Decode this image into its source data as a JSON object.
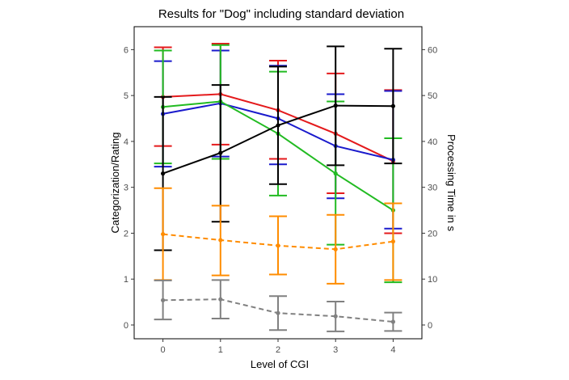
{
  "chart_data": {
    "type": "line",
    "title": "Results for \"Dog\" including standard deviation",
    "xlabel": "Level of CGI",
    "ylabel_left": "Categorization/Rating",
    "ylabel_right": "Processing Time in s",
    "x": [
      0,
      1,
      2,
      3,
      4
    ],
    "x_ticks": [
      "0",
      "1",
      "2",
      "3",
      "4"
    ],
    "xlim": [
      -0.5,
      4.5
    ],
    "ylim_left": [
      -0.3,
      6.5
    ],
    "ylim_right": [
      -3,
      65
    ],
    "y_ticks_left": [
      "0",
      "1",
      "2",
      "3",
      "4",
      "5",
      "6"
    ],
    "y_ticks_right": [
      "0",
      "10",
      "20",
      "30",
      "40",
      "50",
      "60"
    ],
    "grid": false,
    "legend": "none",
    "series": [
      {
        "color": "#e41a1c",
        "dash": false,
        "axis": "left",
        "values": [
          4.97,
          5.03,
          4.68,
          4.17,
          3.57
        ],
        "lower": [
          3.9,
          3.93,
          3.62,
          2.87,
          2.0
        ],
        "upper": [
          6.05,
          6.13,
          5.76,
          5.48,
          5.12
        ]
      },
      {
        "color": "#1a1acc",
        "dash": false,
        "axis": "left",
        "values": [
          4.6,
          4.83,
          4.5,
          3.9,
          3.6
        ],
        "lower": [
          3.45,
          3.67,
          3.5,
          2.76,
          2.1
        ],
        "upper": [
          5.75,
          5.98,
          5.65,
          5.03,
          5.1
        ]
      },
      {
        "color": "#22bb22",
        "dash": false,
        "axis": "left",
        "values": [
          4.75,
          4.87,
          4.17,
          3.3,
          2.5
        ],
        "lower": [
          3.52,
          3.62,
          2.82,
          1.75,
          0.93
        ],
        "upper": [
          5.98,
          6.1,
          5.52,
          4.87,
          4.07
        ]
      },
      {
        "color": "#000000",
        "dash": false,
        "axis": "left",
        "values": [
          3.3,
          3.75,
          4.35,
          4.78,
          4.77
        ],
        "lower": [
          1.63,
          2.25,
          3.07,
          3.48,
          3.52
        ],
        "upper": [
          4.97,
          5.23,
          5.63,
          6.07,
          6.02
        ]
      },
      {
        "color": "#ff8c00",
        "dash": true,
        "axis": "left",
        "values": [
          1.98,
          1.85,
          1.73,
          1.65,
          1.82
        ],
        "lower": [
          0.98,
          1.08,
          1.1,
          0.9,
          0.98
        ],
        "upper": [
          2.98,
          2.6,
          2.37,
          2.4,
          2.65
        ]
      },
      {
        "color": "#808080",
        "dash": true,
        "axis": "left",
        "values": [
          0.54,
          0.56,
          0.26,
          0.19,
          0.07
        ],
        "lower": [
          0.12,
          0.14,
          -0.11,
          -0.14,
          -0.13
        ],
        "upper": [
          0.97,
          0.98,
          0.63,
          0.51,
          0.27
        ]
      }
    ]
  }
}
